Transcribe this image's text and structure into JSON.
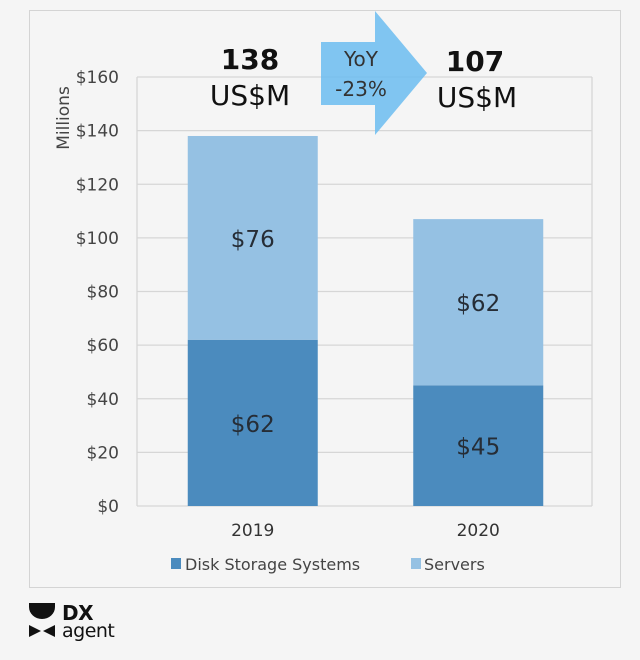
{
  "chart_data": {
    "type": "bar",
    "stacked": true,
    "categories": [
      "2019",
      "2020"
    ],
    "series": [
      {
        "name": "Disk Storage Systems",
        "values": [
          62,
          45
        ],
        "labels": [
          "$62",
          "$45"
        ],
        "color": "#4b8bbe"
      },
      {
        "name": "Servers",
        "values": [
          76,
          62
        ],
        "labels": [
          "$76",
          "$62"
        ],
        "color": "#95c1e3"
      }
    ],
    "ylabel": "Millions",
    "ylim": [
      0,
      160
    ],
    "yticks": [
      0,
      20,
      40,
      60,
      80,
      100,
      120,
      140,
      160
    ],
    "ytick_labels": [
      "$0",
      "$20",
      "$40",
      "$60",
      "$80",
      "$100",
      "$120",
      "$140",
      "$160"
    ],
    "grid": true,
    "legend_position": "bottom",
    "totals": [
      {
        "value": "138",
        "unit": "US$M"
      },
      {
        "value": "107",
        "unit": "US$M"
      }
    ],
    "annotation": {
      "line1": "YoY",
      "line2": "-23%",
      "color": "#6bbcf0"
    }
  },
  "logo": {
    "line1": "DX",
    "line2": "agent"
  }
}
